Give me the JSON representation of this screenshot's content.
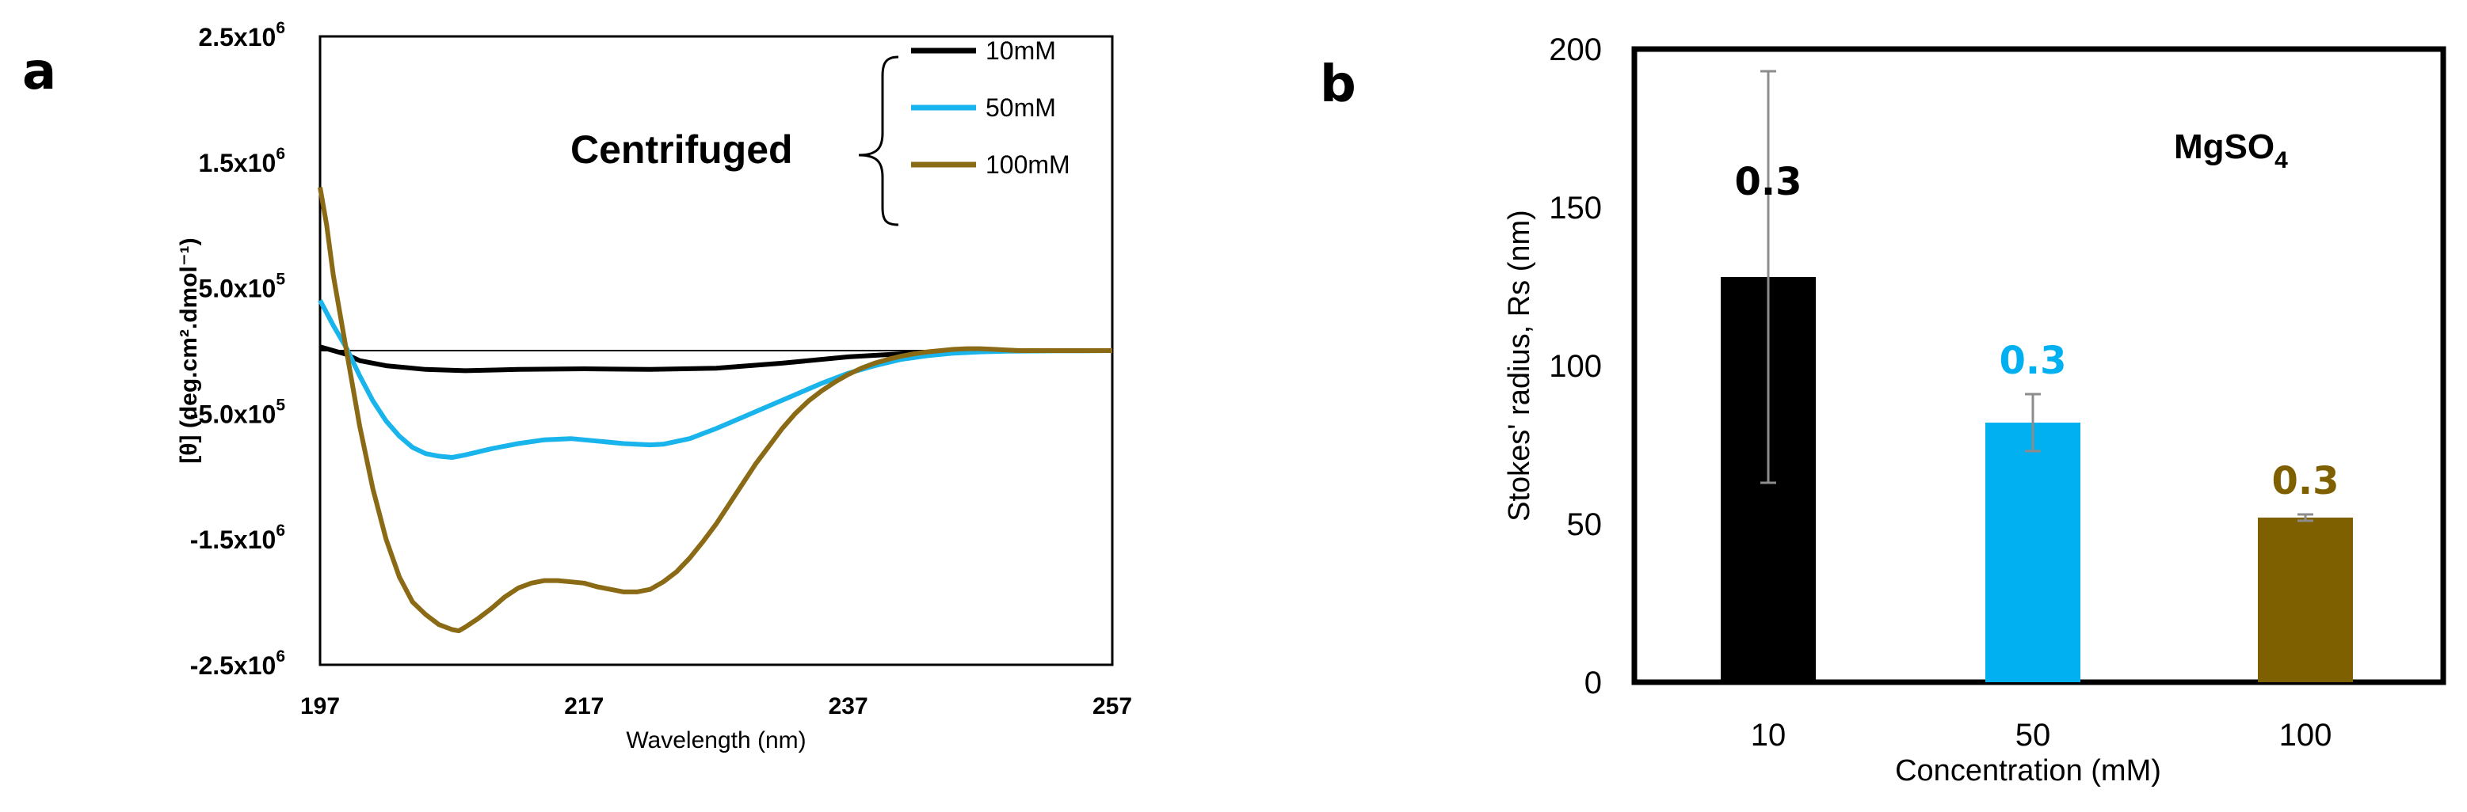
{
  "chart_data": [
    {
      "panel": "a",
      "type": "line",
      "xlabel": "Wavelength (nm)",
      "ylabel": "[θ] (deg.cm².dmol⁻¹)",
      "xlim": [
        197,
        257
      ],
      "ylim": [
        -2500000,
        2500000
      ],
      "xticks": [
        "197",
        "217",
        "237",
        "257"
      ],
      "yticks": [
        {
          "value": 2500000,
          "base": "2.5x10",
          "exp": "6"
        },
        {
          "value": 1500000,
          "base": "1.5x10",
          "exp": "6"
        },
        {
          "value": 500000,
          "base": "5.0x10",
          "exp": "5"
        },
        {
          "value": -500000,
          "base": "-5.0x10",
          "exp": "5"
        },
        {
          "value": -1500000,
          "base": "-1.5x10",
          "exp": "6"
        },
        {
          "value": -2500000,
          "base": "-2.5x10",
          "exp": "6"
        }
      ],
      "annotation": "Centrifuged",
      "series": [
        {
          "name": "10mM",
          "color": "#000000",
          "x": [
            197,
            198,
            199,
            200,
            202,
            205,
            208,
            212,
            217,
            222,
            227,
            232,
            237,
            242,
            247,
            252,
            257
          ],
          "y": [
            30000,
            0,
            -30000,
            -80000,
            -120000,
            -150000,
            -160000,
            -150000,
            -145000,
            -150000,
            -140000,
            -100000,
            -50000,
            -20000,
            0,
            0,
            0
          ]
        },
        {
          "name": "50mM",
          "color": "#1ab4ec",
          "x": [
            197,
            198,
            199,
            200,
            201,
            202,
            203,
            204,
            205,
            206,
            207,
            208,
            210,
            212,
            214,
            216,
            218,
            220,
            222,
            223,
            225,
            227,
            229,
            231,
            233,
            235,
            237,
            239,
            241,
            243,
            245,
            247,
            249,
            251,
            253,
            255,
            257
          ],
          "y": [
            400000,
            200000,
            20000,
            -200000,
            -400000,
            -560000,
            -680000,
            -770000,
            -820000,
            -840000,
            -850000,
            -830000,
            -780000,
            -740000,
            -710000,
            -700000,
            -720000,
            -740000,
            -750000,
            -745000,
            -700000,
            -620000,
            -530000,
            -440000,
            -350000,
            -260000,
            -180000,
            -120000,
            -70000,
            -40000,
            -20000,
            -10000,
            -5000,
            -3000,
            -2000,
            -1000,
            0
          ]
        },
        {
          "name": "100mM",
          "color": "#8a6a14",
          "x": [
            197,
            197.5,
            198,
            199,
            200,
            201,
            202,
            203,
            204,
            205,
            206,
            207,
            207.5,
            208,
            209,
            210,
            211,
            212,
            213,
            214,
            215,
            216,
            217,
            218,
            219,
            220,
            221,
            222,
            223,
            224,
            225,
            226,
            227,
            228,
            229,
            230,
            231,
            232,
            233,
            234,
            235,
            236,
            237,
            238,
            239,
            240,
            241,
            242,
            243,
            244,
            245,
            246,
            247,
            248,
            249,
            250,
            252,
            254,
            257
          ],
          "y": [
            1300000,
            1000000,
            600000,
            0,
            -600000,
            -1100000,
            -1500000,
            -1800000,
            -2000000,
            -2100000,
            -2180000,
            -2220000,
            -2230000,
            -2200000,
            -2130000,
            -2050000,
            -1960000,
            -1890000,
            -1850000,
            -1830000,
            -1830000,
            -1840000,
            -1850000,
            -1880000,
            -1900000,
            -1920000,
            -1920000,
            -1900000,
            -1840000,
            -1760000,
            -1650000,
            -1520000,
            -1380000,
            -1220000,
            -1060000,
            -900000,
            -760000,
            -620000,
            -500000,
            -400000,
            -320000,
            -250000,
            -190000,
            -140000,
            -100000,
            -70000,
            -45000,
            -25000,
            -10000,
            0,
            10000,
            15000,
            15000,
            10000,
            5000,
            0,
            0,
            0,
            0
          ]
        }
      ]
    },
    {
      "panel": "b",
      "type": "bar",
      "xlabel": "Concentration (mM)",
      "ylabel": "Stokes' radius, Rs (nm)",
      "ylim": [
        0,
        200
      ],
      "yticks": [
        "0",
        "50",
        "100",
        "150",
        "200"
      ],
      "categories": [
        "10",
        "50",
        "100"
      ],
      "values": [
        128,
        82,
        52
      ],
      "error": [
        65,
        9,
        1
      ],
      "colors": [
        "#000000",
        "#00b0f0",
        "#7f6000"
      ],
      "data_labels": [
        "0.3",
        "0.3",
        "0.3"
      ],
      "annotation": {
        "base": "MgSO",
        "sub": "4"
      }
    }
  ],
  "panels": {
    "a_label": "a",
    "b_label": "b"
  }
}
